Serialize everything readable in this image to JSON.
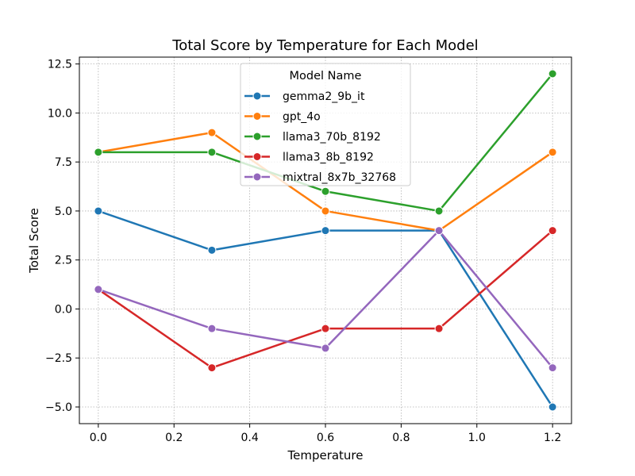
{
  "chart_data": {
    "type": "line",
    "title": "Total Score by Temperature for Each Model",
    "xlabel": "Temperature",
    "ylabel": "Total Score",
    "x": [
      0.0,
      0.3,
      0.6,
      0.9,
      1.2
    ],
    "xlim": [
      -0.05,
      1.25
    ],
    "ylim": [
      -5.85,
      12.85
    ],
    "xticks": [
      0.0,
      0.2,
      0.4,
      0.6,
      0.8,
      1.0,
      1.2
    ],
    "xtick_labels": [
      "0.0",
      "0.2",
      "0.4",
      "0.6",
      "0.8",
      "1.0",
      "1.2"
    ],
    "yticks": [
      -5.0,
      -2.5,
      0.0,
      2.5,
      5.0,
      7.5,
      10.0,
      12.5
    ],
    "ytick_labels": [
      "−5.0",
      "−2.5",
      "0.0",
      "2.5",
      "5.0",
      "7.5",
      "10.0",
      "12.5"
    ],
    "grid": true,
    "legend": {
      "title": "Model Name",
      "placement": "top-center"
    },
    "series": [
      {
        "name": "gemma2_9b_it",
        "color": "#1f77b4",
        "values": [
          5,
          3,
          4,
          4,
          -5
        ]
      },
      {
        "name": "gpt_4o",
        "color": "#ff7f0e",
        "values": [
          8,
          9,
          5,
          4,
          8
        ]
      },
      {
        "name": "llama3_70b_8192",
        "color": "#2ca02c",
        "values": [
          8,
          8,
          6,
          5,
          12
        ]
      },
      {
        "name": "llama3_8b_8192",
        "color": "#d62728",
        "values": [
          1,
          -3,
          -1,
          -1,
          4
        ]
      },
      {
        "name": "mixtral_8x7b_32768",
        "color": "#9467bd",
        "values": [
          1,
          -1,
          -2,
          4,
          -3
        ]
      }
    ]
  }
}
